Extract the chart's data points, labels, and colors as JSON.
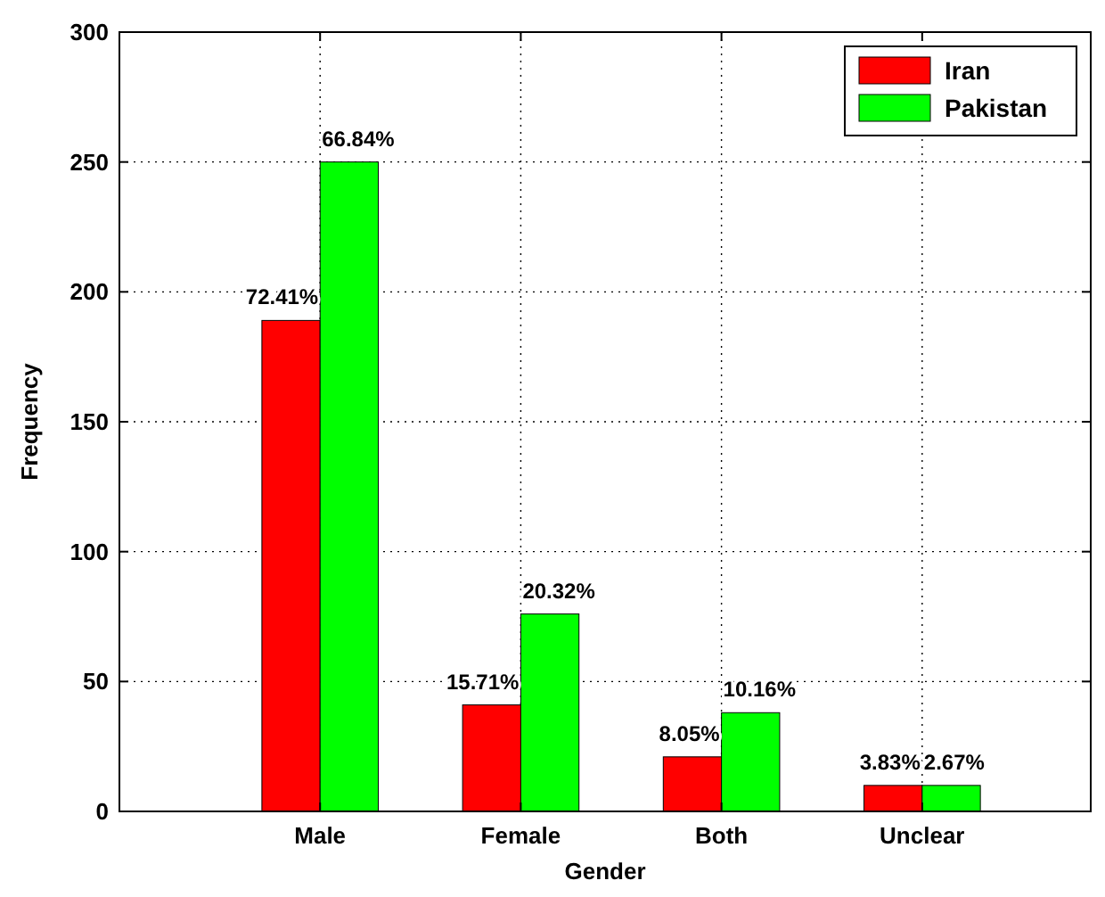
{
  "chart_data": {
    "type": "bar",
    "xlabel": "Gender",
    "ylabel": "Frequency",
    "categories": [
      "Male",
      "Female",
      "Both",
      "Unclear"
    ],
    "series": [
      {
        "name": "Iran",
        "color": "#ff0000",
        "values": [
          189,
          41,
          21,
          10
        ]
      },
      {
        "name": "Pakistan",
        "color": "#00ff00",
        "values": [
          250,
          76,
          38,
          10
        ]
      }
    ],
    "annotations": [
      {
        "text": "72.41%",
        "x": "Male",
        "y": 189
      },
      {
        "text": "66.84%",
        "x": "Male",
        "y": 250
      },
      {
        "text": "15.71%",
        "x": "Female",
        "y": 41
      },
      {
        "text": "20.32%",
        "x": "Female",
        "y": 76
      },
      {
        "text": "8.05%",
        "x": "Both",
        "y": 21
      },
      {
        "text": "10.16%",
        "x": "Both",
        "y": 38
      },
      {
        "text": "3.83%",
        "x": "Unclear",
        "y": 10
      },
      {
        "text": "2.67%",
        "x": "Unclear",
        "y": 10
      }
    ],
    "ylim": [
      0,
      300
    ],
    "yticks": [
      0,
      50,
      100,
      150,
      200,
      250,
      300
    ],
    "grid": true,
    "legend": "top right"
  }
}
